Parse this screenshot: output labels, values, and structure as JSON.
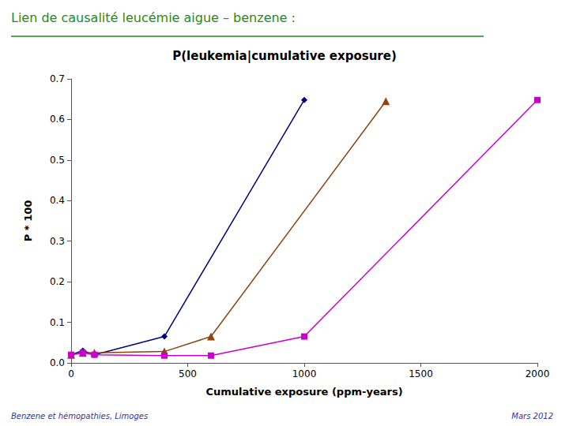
{
  "chart_data": {
    "type": "line",
    "title": "P(leukemia|cumulative exposure)",
    "xlabel": "Cumulative exposure (ppm-years)",
    "ylabel": "P * 100",
    "annotations": [
      "Lien de causalité leucémie aigue – benzene :",
      "Benzene et hémopathies, Limoges",
      "Mars 2012"
    ],
    "series": [
      {
        "x": [
          0,
          50,
          100,
          400,
          1000
        ],
        "values": [
          0.02,
          0.03,
          0.02,
          0.065,
          0.648
        ],
        "color": "#000080",
        "marker": "diamond"
      },
      {
        "x": [
          0,
          50,
          100,
          400,
          600,
          1350
        ],
        "values": [
          0.02,
          0.025,
          0.025,
          0.028,
          0.065,
          0.645
        ],
        "color": "#8B4513",
        "marker": "triangle"
      },
      {
        "x": [
          0,
          50,
          100,
          400,
          600,
          1000,
          2000
        ],
        "values": [
          0.02,
          0.025,
          0.02,
          0.018,
          0.018,
          0.065,
          0.648
        ],
        "color": "#cc00cc",
        "marker": "square"
      }
    ],
    "xlim": [
      0,
      2000
    ],
    "ylim": [
      0,
      0.7
    ],
    "xticks": [
      0,
      500,
      1000,
      1500,
      2000
    ],
    "yticks": [
      {
        "value": 0,
        "label": "0.0"
      },
      0.1,
      0.2,
      0.3,
      0.4,
      0.5,
      0.6,
      0.7
    ],
    "grid": false,
    "legend": false
  }
}
